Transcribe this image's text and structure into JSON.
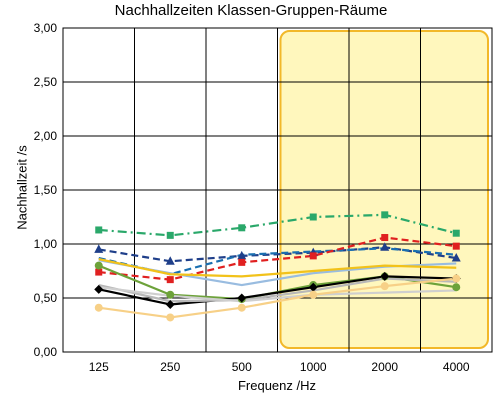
{
  "chart_data": {
    "type": "line",
    "title": "Nachhallzeiten Klassen-Gruppen-Räume",
    "xlabel": "Frequenz /Hz",
    "ylabel": "Nachhallzeit /s",
    "categories": [
      "125",
      "250",
      "500",
      "1000",
      "2000",
      "4000"
    ],
    "ylim": [
      0,
      3
    ],
    "yticks": [
      "0,00",
      "0,50",
      "1,00",
      "1,50",
      "2,00",
      "2,50",
      "3,00"
    ],
    "grid": true,
    "highlight_band": {
      "from": "1000",
      "to": "4000",
      "color": "#fff7bd",
      "border": "#f2b82a"
    },
    "series": [
      {
        "color": "#2aa86a",
        "style": "dashdot",
        "marker": "square",
        "values": [
          1.13,
          1.08,
          1.15,
          1.25,
          1.27,
          1.1
        ]
      },
      {
        "color": "#1f3f8a",
        "style": "dashed",
        "marker": "triangle",
        "values": [
          0.95,
          0.84,
          0.89,
          0.92,
          0.97,
          0.87
        ]
      },
      {
        "color": "#1a6fb0",
        "style": "dashed",
        "marker": "none",
        "values": [
          0.87,
          0.72,
          0.9,
          0.93,
          0.96,
          0.9
        ]
      },
      {
        "color": "#e02020",
        "style": "dashed",
        "marker": "square",
        "values": [
          0.74,
          0.67,
          0.83,
          0.89,
          1.06,
          0.98
        ]
      },
      {
        "color": "#99bce0",
        "style": "solid",
        "marker": "none",
        "values": [
          0.85,
          0.73,
          0.62,
          0.73,
          0.79,
          0.82
        ]
      },
      {
        "color": "#f2c21a",
        "style": "solid",
        "marker": "none",
        "values": [
          0.86,
          0.72,
          0.7,
          0.75,
          0.8,
          0.78
        ]
      },
      {
        "color": "#6da23a",
        "style": "solid",
        "marker": "circle",
        "values": [
          0.8,
          0.53,
          0.49,
          0.62,
          0.7,
          0.6
        ]
      },
      {
        "color": "#000000",
        "style": "solid",
        "marker": "diamond",
        "values": [
          0.58,
          0.44,
          0.5,
          0.6,
          0.7,
          0.68
        ]
      },
      {
        "color": "#b8b8b8",
        "style": "solid",
        "marker": "none",
        "values": [
          0.62,
          0.47,
          0.48,
          0.57,
          0.68,
          0.65
        ]
      },
      {
        "color": "#cfcfcf",
        "style": "solid",
        "marker": "none",
        "values": [
          0.6,
          0.52,
          0.47,
          0.53,
          0.55,
          0.57
        ]
      },
      {
        "color": "#f7d087",
        "style": "solid",
        "marker": "circle",
        "values": [
          0.41,
          0.32,
          0.41,
          0.53,
          0.61,
          0.68
        ]
      }
    ]
  }
}
